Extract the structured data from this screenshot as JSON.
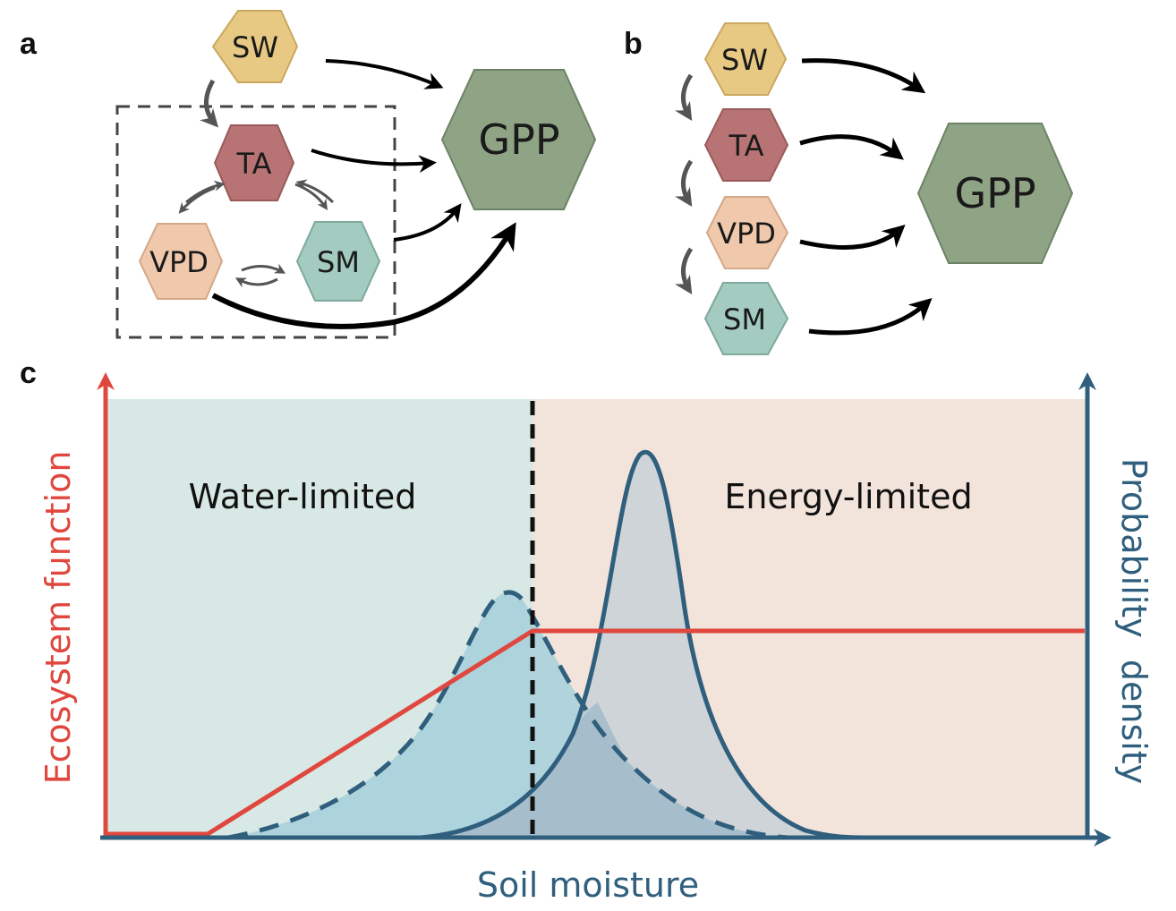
{
  "panels": {
    "a": {
      "letter": "a",
      "nodes": {
        "sw": "SW",
        "ta": "TA",
        "vpd": "VPD",
        "sm": "SM",
        "gpp": "GPP"
      }
    },
    "b": {
      "letter": "b",
      "nodes": {
        "sw": "SW",
        "ta": "TA",
        "vpd": "VPD",
        "sm": "SM",
        "gpp": "GPP"
      }
    },
    "c": {
      "letter": "c",
      "regions": {
        "left": "Water-limited",
        "right": "Energy-limited"
      },
      "axes": {
        "x_label": "Soil moisture",
        "y_left_label": "Ecosystem function",
        "y_right_label": "Probability  density"
      }
    }
  },
  "colors": {
    "sw": "#e8c984",
    "ta": "#b87474",
    "vpd": "#f0c8ac",
    "sm": "#a3cbc0",
    "gpp": "#8fa385",
    "water_bg": "#d8e8e5",
    "energy_bg": "#f2e4db",
    "red": "#e0473e",
    "blue": "#2f5f7d"
  }
}
